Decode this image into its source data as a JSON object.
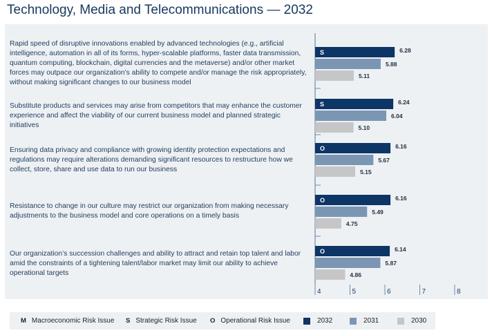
{
  "title": "Technology, Media and Telecommunications — 2032",
  "chart_data": {
    "type": "bar",
    "orientation": "horizontal",
    "title": "Technology, Media and Telecommunications — 2032",
    "xlim": [
      4,
      8.9
    ],
    "x_ticks": [
      "4",
      "5",
      "6",
      "7",
      "8"
    ],
    "categories": [
      "Rapid speed of disruptive innovations enabled by advanced technologies (e.g., artificial intelligence, automation in all of its forms, hyper-scalable platforms, faster data transmission, quantum computing, blockchain, digital currencies and the metaverse) and/or other market forces may outpace our organization’s ability to compete and/or manage the risk appropriately, without making significant changes to our business model",
      "Substitute products and services may arise from competitors that may enhance the customer experience and affect the viability of our current business model and planned strategic initiatives",
      "Ensuring data privacy and compliance with growing identity protection expectations and regulations may require alterations demanding significant resources to restructure how we collect, store, share and use data to run our business",
      "Resistance to change in our culture may restrict our organization from making necessary adjustments to the business model and core operations on a timely basis",
      "Our organization’s succession challenges and ability to attract and retain top talent and labor amid the constraints of a tightening talent/labor market may limit our ability to achieve operational targets"
    ],
    "risk_type_codes": [
      "S",
      "S",
      "O",
      "O",
      "O"
    ],
    "series": [
      {
        "name": "2032",
        "color": "#0d3565",
        "values": [
          6.28,
          6.24,
          6.16,
          6.16,
          6.14
        ]
      },
      {
        "name": "2031",
        "color": "#7b96b3",
        "values": [
          5.88,
          6.04,
          5.67,
          5.49,
          5.87
        ]
      },
      {
        "name": "2030",
        "color": "#c6c6c6",
        "values": [
          5.11,
          5.1,
          5.15,
          4.75,
          4.86
        ]
      }
    ],
    "value_labels": [
      [
        "6.28",
        "5.88",
        "5.11"
      ],
      [
        "6.24",
        "6.04",
        "5.10"
      ],
      [
        "6.16",
        "5.67",
        "5.15"
      ],
      [
        "6.16",
        "5.49",
        "4.75"
      ],
      [
        "6.14",
        "5.87",
        "4.86"
      ]
    ]
  },
  "legend": {
    "risk_types": [
      {
        "code": "M",
        "label": "Macroeconomic Risk Issue"
      },
      {
        "code": "S",
        "label": "Strategic Risk Issue"
      },
      {
        "code": "O",
        "label": "Operational Risk Issue"
      }
    ],
    "years": [
      {
        "label": "2032",
        "color": "#0d3565"
      },
      {
        "label": "2031",
        "color": "#7b96b3"
      },
      {
        "label": "2030",
        "color": "#c6c6c6"
      }
    ]
  }
}
